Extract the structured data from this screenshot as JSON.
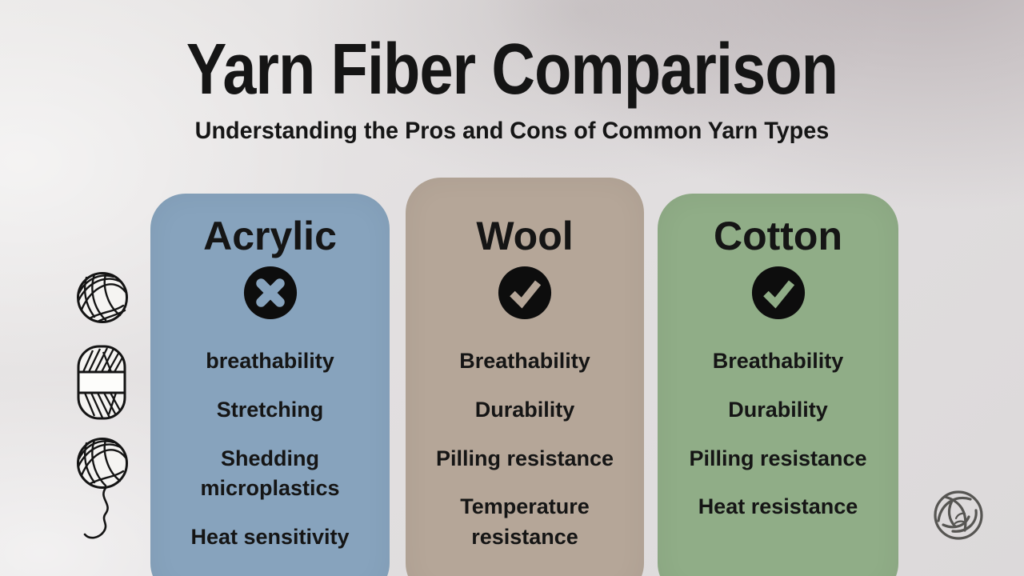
{
  "header": {
    "title": "Yarn Fiber Comparison",
    "subtitle": "Understanding the Pros and Cons of Common Yarn Types"
  },
  "columns": [
    {
      "name": "Acrylic",
      "verdict_icon": "x-circle-icon",
      "color": "#87a3bd",
      "items": [
        "breathability",
        "Stretching",
        "Shedding microplastics",
        "Heat sensitivity"
      ]
    },
    {
      "name": "Wool",
      "verdict_icon": "check-circle-icon",
      "color": "#b5a698",
      "items": [
        "Breathability",
        "Durability",
        "Pilling resistance",
        "Temperature resistance"
      ]
    },
    {
      "name": "Cotton",
      "verdict_icon": "check-circle-icon",
      "color": "#90ad87",
      "items": [
        "Breathability",
        "Durability",
        "Pilling resistance",
        "Heat resistance"
      ]
    }
  ],
  "decorations": {
    "left_icons": [
      "yarn-ball-icon",
      "yarn-skein-icon",
      "yarn-ball-trailing-thread-icon"
    ],
    "logo_icon": "yarn-ball-logo-icon"
  },
  "colors": {
    "text": "#151515",
    "verdict_circle_fill": "#0d0d0d",
    "logo_stroke": "#4b4a47",
    "icon_paper": "#f5f4f2"
  }
}
